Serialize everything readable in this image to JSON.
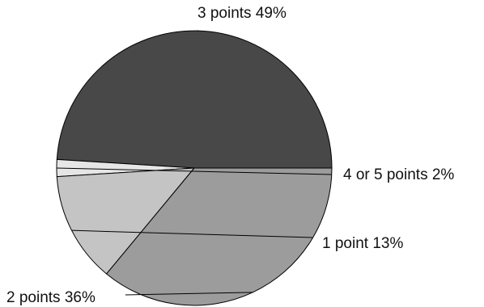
{
  "chart_data": {
    "type": "pie",
    "title": "",
    "slices": [
      {
        "name": "3 points",
        "value": 49,
        "label": "3 points 49%",
        "color": "#484848"
      },
      {
        "name": "4 or 5 points",
        "value": 2,
        "label": "4 or 5 points 2%",
        "color": "#e6e6e6"
      },
      {
        "name": "1 point",
        "value": 13,
        "label": "1 point 13%",
        "color": "#c4c4c4"
      },
      {
        "name": "2 points",
        "value": 36,
        "label": "2 points 36%",
        "color": "#9c9c9c"
      }
    ],
    "start_angle": "3 o'clock",
    "direction": "counterclockwise",
    "legend": "none"
  }
}
